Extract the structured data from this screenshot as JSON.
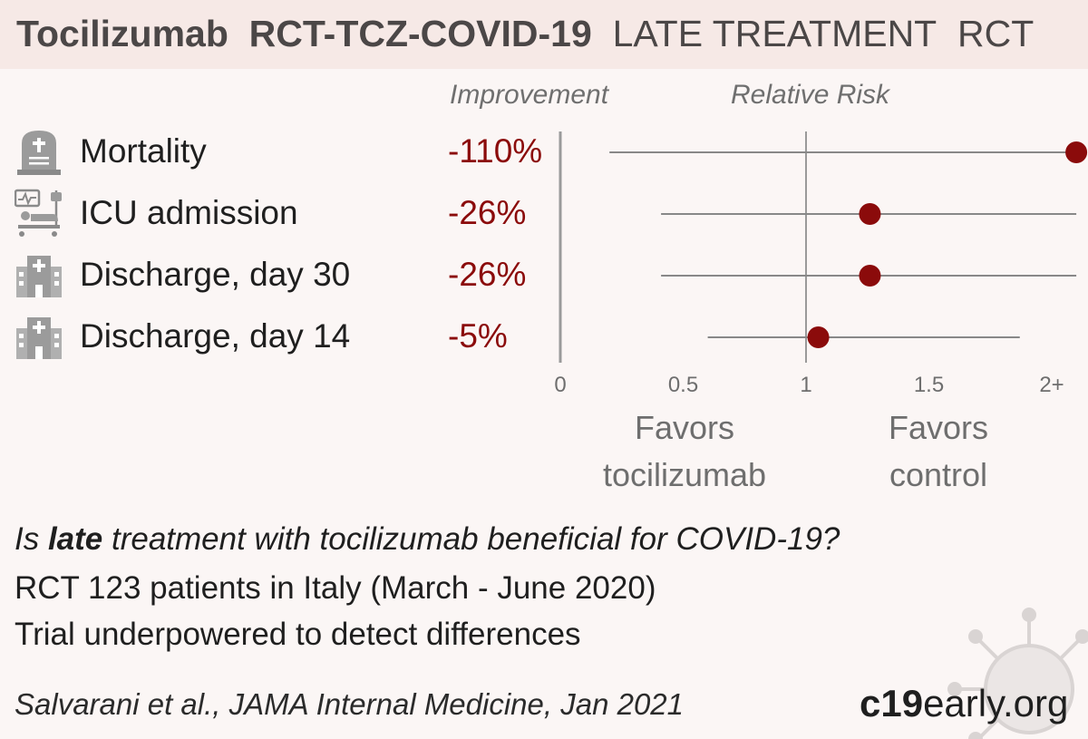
{
  "header": {
    "drug": "Tocilizumab",
    "trial": "RCT-TCZ-COVID-19",
    "stage": "LATE TREATMENT",
    "design": "RCT"
  },
  "columns": {
    "improvement": "Improvement",
    "relative_risk": "Relative Risk"
  },
  "rows": [
    {
      "icon": "tombstone-icon",
      "label": "Mortality",
      "value": "-110%"
    },
    {
      "icon": "icu-bed-icon",
      "label": "ICU admission",
      "value": "-26%"
    },
    {
      "icon": "hospital-icon",
      "label": "Discharge, day 30",
      "value": "-26%"
    },
    {
      "icon": "hospital-icon",
      "label": "Discharge, day 14",
      "value": "-5%"
    }
  ],
  "chart_data": {
    "type": "forest",
    "xlim": [
      0,
      2
    ],
    "ticks": [
      {
        "value": 0,
        "label": "0"
      },
      {
        "value": 0.5,
        "label": "0.5"
      },
      {
        "value": 1,
        "label": "1"
      },
      {
        "value": 1.5,
        "label": "1.5"
      },
      {
        "value": 2,
        "label": "2+"
      }
    ],
    "reference": 1,
    "points": [
      {
        "category": "Mortality",
        "rr": 2.1,
        "ci_low": 0.2,
        "ci_high": 2.1
      },
      {
        "category": "ICU admission",
        "rr": 1.26,
        "ci_low": 0.41,
        "ci_high": 2.1
      },
      {
        "category": "Discharge, day 30",
        "rr": 1.26,
        "ci_low": 0.41,
        "ci_high": 2.1
      },
      {
        "category": "Discharge, day 14",
        "rr": 1.05,
        "ci_low": 0.6,
        "ci_high": 1.87
      }
    ],
    "favors_left": "Favors tocilizumab",
    "favors_right": "Favors control",
    "colors": {
      "point": "#8b0b0b",
      "line": "#888888"
    }
  },
  "notes": {
    "question_pre": "Is ",
    "question_bold": "late",
    "question_post": " treatment with tocilizumab beneficial for COVID-19?",
    "line2": "RCT 123 patients in Italy (March - June 2020)",
    "line3": "Trial underpowered to detect differences"
  },
  "citation": "Salvarani et al., JAMA Internal Medicine, Jan 2021",
  "brand": {
    "bold": "c19",
    "rest": "early.org"
  }
}
